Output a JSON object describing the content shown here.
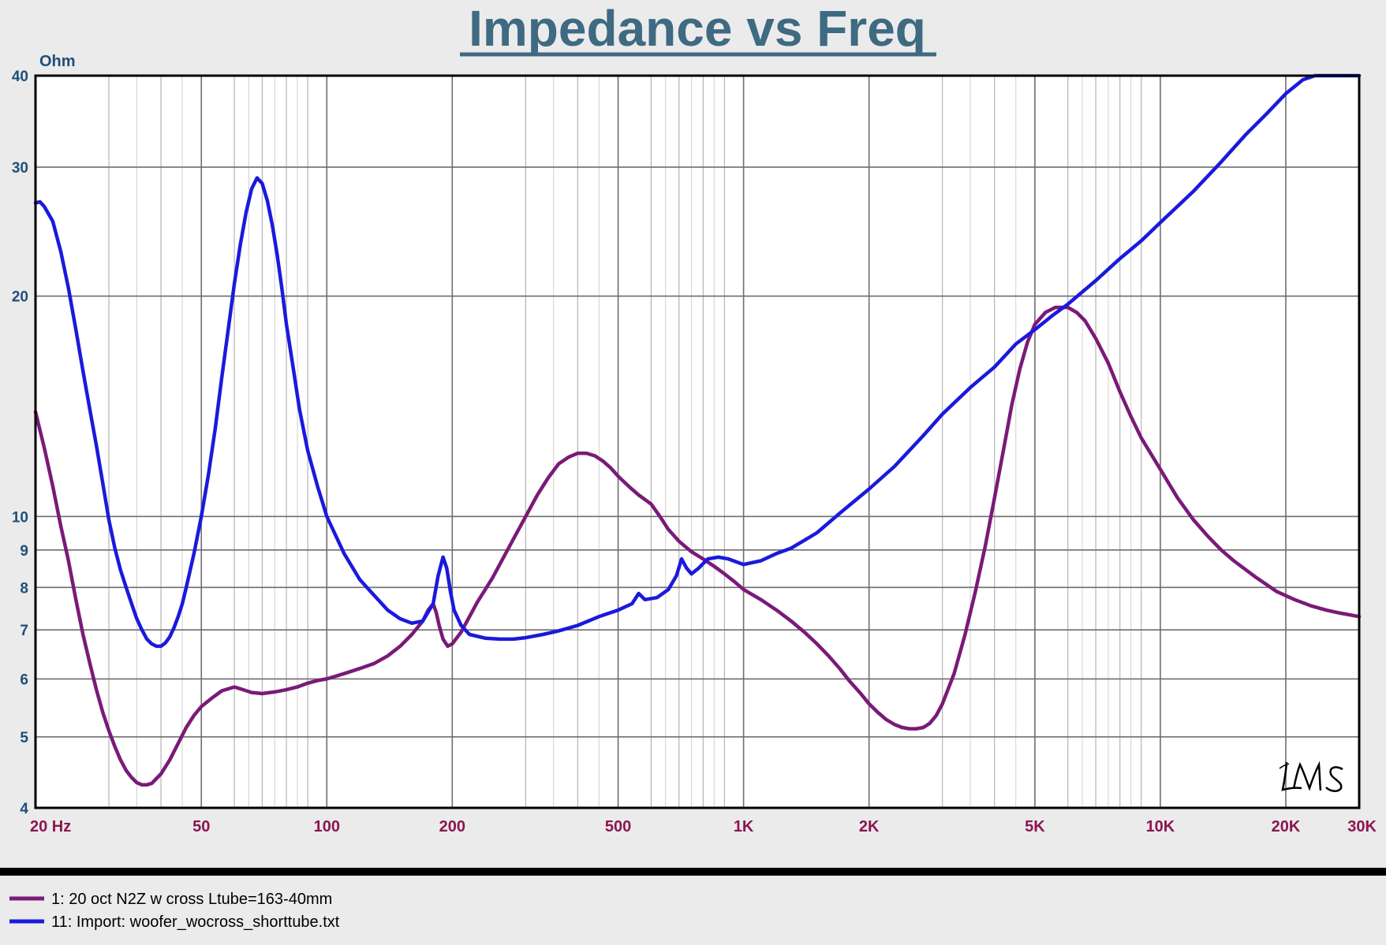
{
  "chart_data": {
    "type": "line",
    "title": "Impedance vs Freq",
    "ylabel": "Ohm",
    "xscale": "log",
    "yscale": "log",
    "xlim": [
      20,
      30000
    ],
    "ylim": [
      4,
      40
    ],
    "grid": true,
    "x_ticks": [
      {
        "value": 20,
        "label": "20  Hz"
      },
      {
        "value": 50,
        "label": "50"
      },
      {
        "value": 100,
        "label": "100"
      },
      {
        "value": 200,
        "label": "200"
      },
      {
        "value": 500,
        "label": "500"
      },
      {
        "value": 1000,
        "label": "1K"
      },
      {
        "value": 2000,
        "label": "2K"
      },
      {
        "value": 5000,
        "label": "5K"
      },
      {
        "value": 10000,
        "label": "10K"
      },
      {
        "value": 20000,
        "label": "20K"
      },
      {
        "value": 30000,
        "label": "30K"
      }
    ],
    "y_ticks": [
      {
        "value": 40,
        "label": "40"
      },
      {
        "value": 30,
        "label": "30"
      },
      {
        "value": 20,
        "label": "20"
      },
      {
        "value": 10,
        "label": "10"
      },
      {
        "value": 9,
        "label": "9"
      },
      {
        "value": 8,
        "label": "8"
      },
      {
        "value": 7,
        "label": "7"
      },
      {
        "value": 6,
        "label": "6"
      },
      {
        "value": 5,
        "label": "5"
      },
      {
        "value": 4,
        "label": "4"
      }
    ],
    "legend_position": "bottom",
    "watermark": "LMS",
    "series": [
      {
        "name": "1: 20 oct N2Z w cross  Ltube=163-40mm",
        "color": "#7a1a78",
        "points": [
          [
            20,
            13.9
          ],
          [
            21,
            12.4
          ],
          [
            22,
            11.0
          ],
          [
            23,
            9.7
          ],
          [
            24,
            8.7
          ],
          [
            25,
            7.7
          ],
          [
            26,
            6.9
          ],
          [
            27,
            6.3
          ],
          [
            28,
            5.8
          ],
          [
            29,
            5.4
          ],
          [
            30,
            5.1
          ],
          [
            31,
            4.85
          ],
          [
            32,
            4.65
          ],
          [
            33,
            4.5
          ],
          [
            34,
            4.4
          ],
          [
            35,
            4.33
          ],
          [
            36,
            4.3
          ],
          [
            37,
            4.3
          ],
          [
            38,
            4.32
          ],
          [
            40,
            4.45
          ],
          [
            42,
            4.65
          ],
          [
            44,
            4.9
          ],
          [
            46,
            5.15
          ],
          [
            48,
            5.35
          ],
          [
            50,
            5.5
          ],
          [
            53,
            5.65
          ],
          [
            56,
            5.78
          ],
          [
            60,
            5.85
          ],
          [
            63,
            5.8
          ],
          [
            66,
            5.75
          ],
          [
            70,
            5.73
          ],
          [
            75,
            5.76
          ],
          [
            80,
            5.8
          ],
          [
            85,
            5.85
          ],
          [
            90,
            5.92
          ],
          [
            95,
            5.97
          ],
          [
            100,
            6.0
          ],
          [
            110,
            6.1
          ],
          [
            120,
            6.2
          ],
          [
            130,
            6.3
          ],
          [
            140,
            6.45
          ],
          [
            150,
            6.65
          ],
          [
            160,
            6.9
          ],
          [
            170,
            7.2
          ],
          [
            175,
            7.45
          ],
          [
            180,
            7.6
          ],
          [
            183,
            7.4
          ],
          [
            186,
            7.1
          ],
          [
            190,
            6.8
          ],
          [
            195,
            6.65
          ],
          [
            200,
            6.7
          ],
          [
            210,
            6.95
          ],
          [
            220,
            7.3
          ],
          [
            230,
            7.65
          ],
          [
            240,
            7.95
          ],
          [
            250,
            8.25
          ],
          [
            260,
            8.6
          ],
          [
            280,
            9.3
          ],
          [
            300,
            10.0
          ],
          [
            320,
            10.7
          ],
          [
            340,
            11.3
          ],
          [
            360,
            11.8
          ],
          [
            380,
            12.05
          ],
          [
            400,
            12.2
          ],
          [
            420,
            12.2
          ],
          [
            440,
            12.1
          ],
          [
            460,
            11.9
          ],
          [
            480,
            11.65
          ],
          [
            500,
            11.35
          ],
          [
            530,
            11.0
          ],
          [
            560,
            10.7
          ],
          [
            600,
            10.4
          ],
          [
            630,
            10.0
          ],
          [
            660,
            9.6
          ],
          [
            700,
            9.25
          ],
          [
            750,
            8.95
          ],
          [
            800,
            8.75
          ],
          [
            850,
            8.55
          ],
          [
            900,
            8.35
          ],
          [
            950,
            8.15
          ],
          [
            1000,
            7.95
          ],
          [
            1100,
            7.7
          ],
          [
            1200,
            7.45
          ],
          [
            1300,
            7.2
          ],
          [
            1400,
            6.95
          ],
          [
            1500,
            6.7
          ],
          [
            1600,
            6.45
          ],
          [
            1700,
            6.2
          ],
          [
            1800,
            5.95
          ],
          [
            1900,
            5.75
          ],
          [
            2000,
            5.55
          ],
          [
            2100,
            5.4
          ],
          [
            2200,
            5.28
          ],
          [
            2300,
            5.2
          ],
          [
            2400,
            5.15
          ],
          [
            2500,
            5.13
          ],
          [
            2600,
            5.13
          ],
          [
            2700,
            5.15
          ],
          [
            2800,
            5.22
          ],
          [
            2900,
            5.35
          ],
          [
            3000,
            5.55
          ],
          [
            3200,
            6.1
          ],
          [
            3400,
            6.9
          ],
          [
            3600,
            7.9
          ],
          [
            3800,
            9.1
          ],
          [
            4000,
            10.6
          ],
          [
            4200,
            12.3
          ],
          [
            4400,
            14.2
          ],
          [
            4600,
            15.9
          ],
          [
            4800,
            17.3
          ],
          [
            5000,
            18.3
          ],
          [
            5300,
            19.0
          ],
          [
            5600,
            19.3
          ],
          [
            6000,
            19.3
          ],
          [
            6300,
            19.0
          ],
          [
            6600,
            18.5
          ],
          [
            7000,
            17.5
          ],
          [
            7500,
            16.2
          ],
          [
            8000,
            14.8
          ],
          [
            8500,
            13.7
          ],
          [
            9000,
            12.8
          ],
          [
            10000,
            11.6
          ],
          [
            11000,
            10.6
          ],
          [
            12000,
            9.9
          ],
          [
            13000,
            9.4
          ],
          [
            14000,
            9.0
          ],
          [
            15000,
            8.7
          ],
          [
            17000,
            8.25
          ],
          [
            19000,
            7.9
          ],
          [
            21000,
            7.7
          ],
          [
            23000,
            7.55
          ],
          [
            25000,
            7.45
          ],
          [
            27000,
            7.38
          ],
          [
            30000,
            7.3
          ]
        ]
      },
      {
        "name": "11: Import: woofer_wocross_shorttube.txt",
        "color": "#1a1adc",
        "points": [
          [
            20,
            26.8
          ],
          [
            20.5,
            26.9
          ],
          [
            21,
            26.5
          ],
          [
            22,
            25.3
          ],
          [
            23,
            23.0
          ],
          [
            24,
            20.5
          ],
          [
            25,
            18.0
          ],
          [
            26,
            15.8
          ],
          [
            27,
            14.0
          ],
          [
            28,
            12.5
          ],
          [
            29,
            11.1
          ],
          [
            30,
            9.9
          ],
          [
            31,
            9.05
          ],
          [
            32,
            8.45
          ],
          [
            33,
            8.0
          ],
          [
            34,
            7.6
          ],
          [
            35,
            7.25
          ],
          [
            36,
            7.0
          ],
          [
            37,
            6.8
          ],
          [
            38,
            6.7
          ],
          [
            39,
            6.65
          ],
          [
            40,
            6.65
          ],
          [
            41,
            6.72
          ],
          [
            42,
            6.85
          ],
          [
            43,
            7.05
          ],
          [
            44,
            7.3
          ],
          [
            45,
            7.6
          ],
          [
            46,
            8.0
          ],
          [
            48,
            8.9
          ],
          [
            50,
            10.0
          ],
          [
            52,
            11.4
          ],
          [
            54,
            13.2
          ],
          [
            56,
            15.5
          ],
          [
            58,
            18.0
          ],
          [
            60,
            20.8
          ],
          [
            62,
            23.5
          ],
          [
            64,
            26.0
          ],
          [
            66,
            28.0
          ],
          [
            68,
            29.0
          ],
          [
            70,
            28.5
          ],
          [
            72,
            27.0
          ],
          [
            74,
            25.0
          ],
          [
            76,
            22.8
          ],
          [
            78,
            20.5
          ],
          [
            80,
            18.3
          ],
          [
            83,
            16.0
          ],
          [
            86,
            14.0
          ],
          [
            90,
            12.3
          ],
          [
            95,
            11.0
          ],
          [
            100,
            10.0
          ],
          [
            110,
            8.9
          ],
          [
            120,
            8.2
          ],
          [
            130,
            7.8
          ],
          [
            140,
            7.45
          ],
          [
            150,
            7.25
          ],
          [
            160,
            7.15
          ],
          [
            170,
            7.2
          ],
          [
            180,
            7.6
          ],
          [
            185,
            8.3
          ],
          [
            190,
            8.8
          ],
          [
            194,
            8.5
          ],
          [
            198,
            7.9
          ],
          [
            202,
            7.45
          ],
          [
            210,
            7.1
          ],
          [
            220,
            6.9
          ],
          [
            240,
            6.82
          ],
          [
            260,
            6.8
          ],
          [
            280,
            6.8
          ],
          [
            300,
            6.83
          ],
          [
            330,
            6.9
          ],
          [
            360,
            6.98
          ],
          [
            400,
            7.1
          ],
          [
            450,
            7.3
          ],
          [
            500,
            7.45
          ],
          [
            540,
            7.6
          ],
          [
            560,
            7.85
          ],
          [
            580,
            7.7
          ],
          [
            620,
            7.75
          ],
          [
            660,
            7.95
          ],
          [
            690,
            8.3
          ],
          [
            710,
            8.75
          ],
          [
            730,
            8.5
          ],
          [
            750,
            8.35
          ],
          [
            780,
            8.5
          ],
          [
            820,
            8.75
          ],
          [
            870,
            8.8
          ],
          [
            920,
            8.75
          ],
          [
            1000,
            8.6
          ],
          [
            1100,
            8.7
          ],
          [
            1200,
            8.9
          ],
          [
            1300,
            9.05
          ],
          [
            1500,
            9.5
          ],
          [
            1700,
            10.1
          ],
          [
            2000,
            10.9
          ],
          [
            2300,
            11.7
          ],
          [
            2700,
            12.9
          ],
          [
            3000,
            13.8
          ],
          [
            3500,
            15.0
          ],
          [
            4000,
            16.0
          ],
          [
            4500,
            17.2
          ],
          [
            5000,
            18.0
          ],
          [
            5500,
            18.8
          ],
          [
            6000,
            19.5
          ],
          [
            7000,
            21.0
          ],
          [
            8000,
            22.5
          ],
          [
            9000,
            23.8
          ],
          [
            10000,
            25.2
          ],
          [
            12000,
            27.8
          ],
          [
            14000,
            30.5
          ],
          [
            16000,
            33.2
          ],
          [
            18000,
            35.5
          ],
          [
            20000,
            37.8
          ],
          [
            22000,
            39.5
          ],
          [
            23500,
            40.0
          ],
          [
            30000,
            40.0
          ]
        ]
      }
    ]
  }
}
